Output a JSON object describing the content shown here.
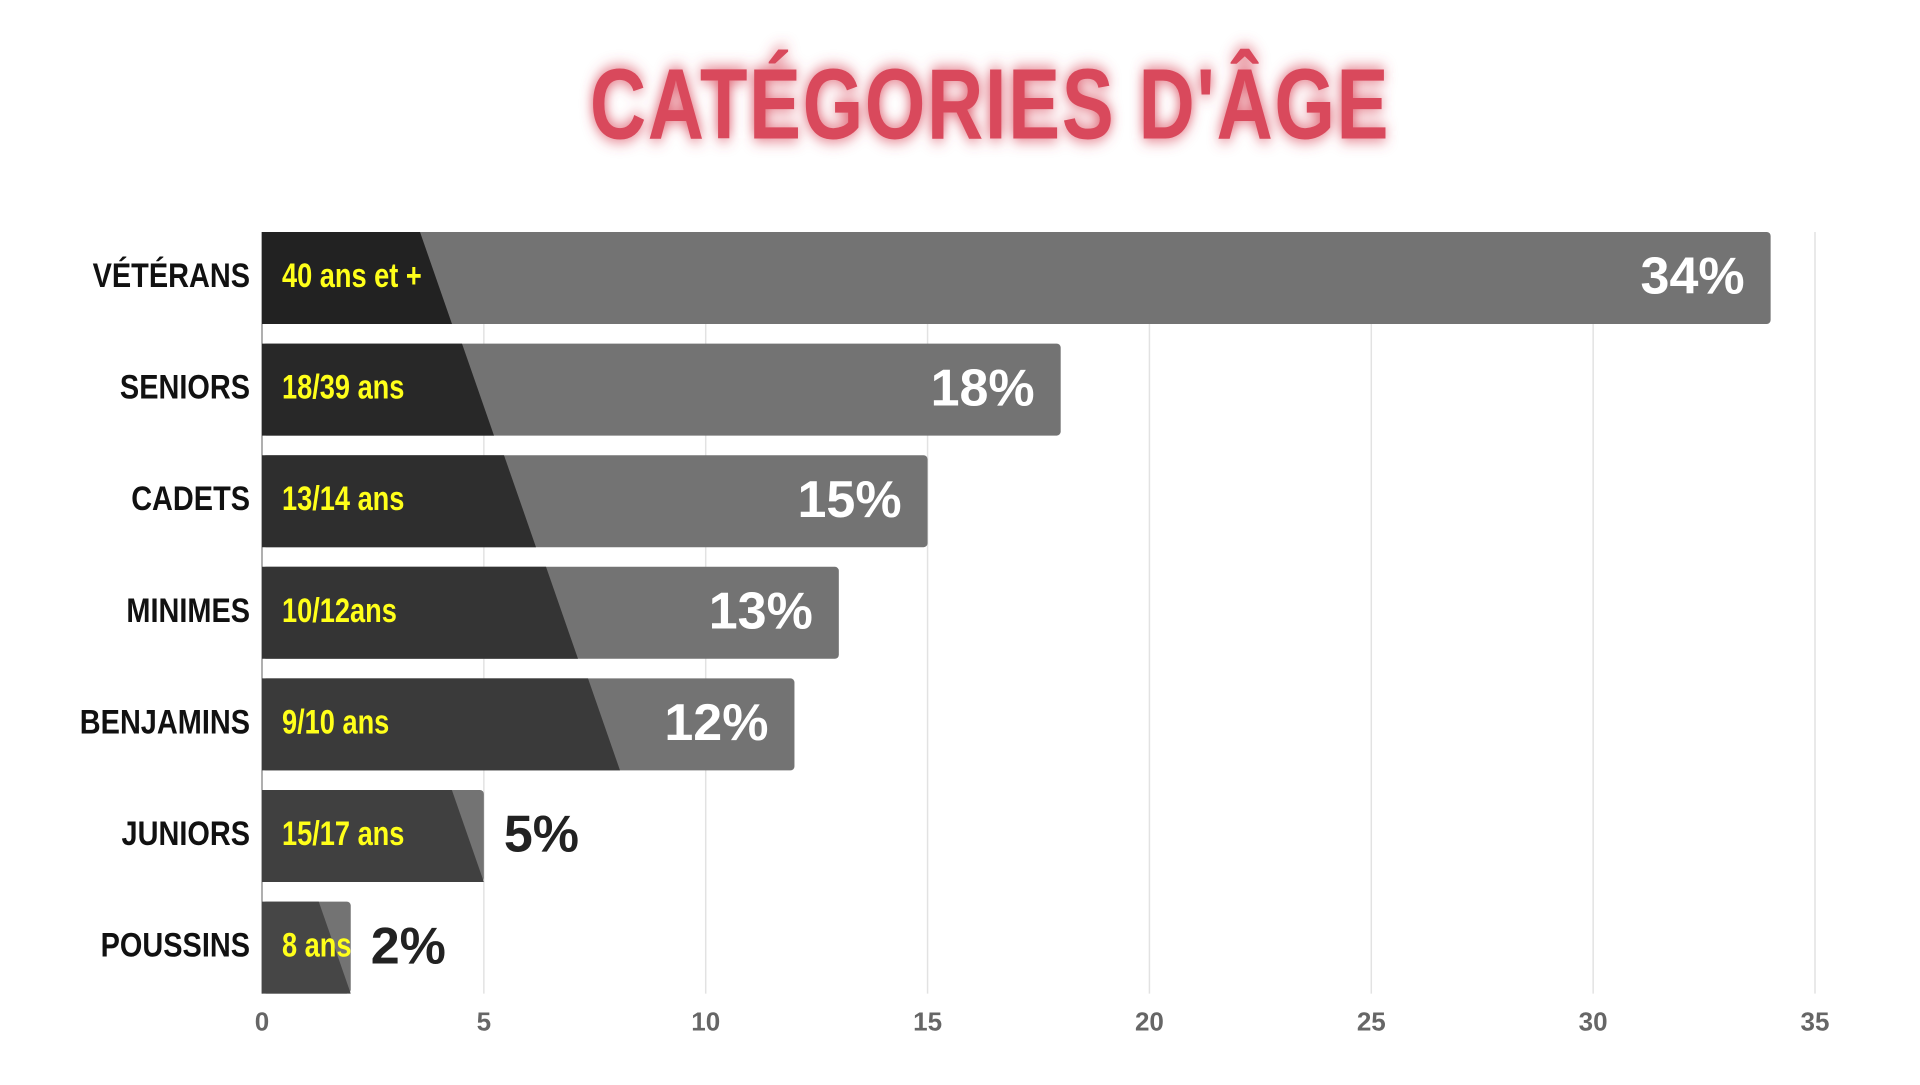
{
  "chart_data": {
    "type": "bar",
    "orientation": "horizontal",
    "title": "CATÉGORIES D'ÂGE",
    "categories": [
      "VÉTÉRANS",
      "SENIORS",
      "CADETS",
      "MINIMES",
      "BENJAMINS",
      "JUNIORS",
      "POUSSINS"
    ],
    "age_ranges": [
      "40 ans et +",
      "18/39 ans",
      "13/14 ans",
      "10/12ans",
      "9/10 ans",
      "15/17 ans",
      "8 ans"
    ],
    "values": [
      34,
      18,
      15,
      13,
      12,
      5,
      2
    ],
    "value_labels": [
      "34%",
      "18%",
      "15%",
      "13%",
      "12%",
      "5%",
      "2%"
    ],
    "color": "#737373",
    "xlim": [
      0,
      35
    ],
    "xticks": [
      0,
      5,
      10,
      15,
      20,
      25,
      30,
      35
    ],
    "grid": true
  }
}
